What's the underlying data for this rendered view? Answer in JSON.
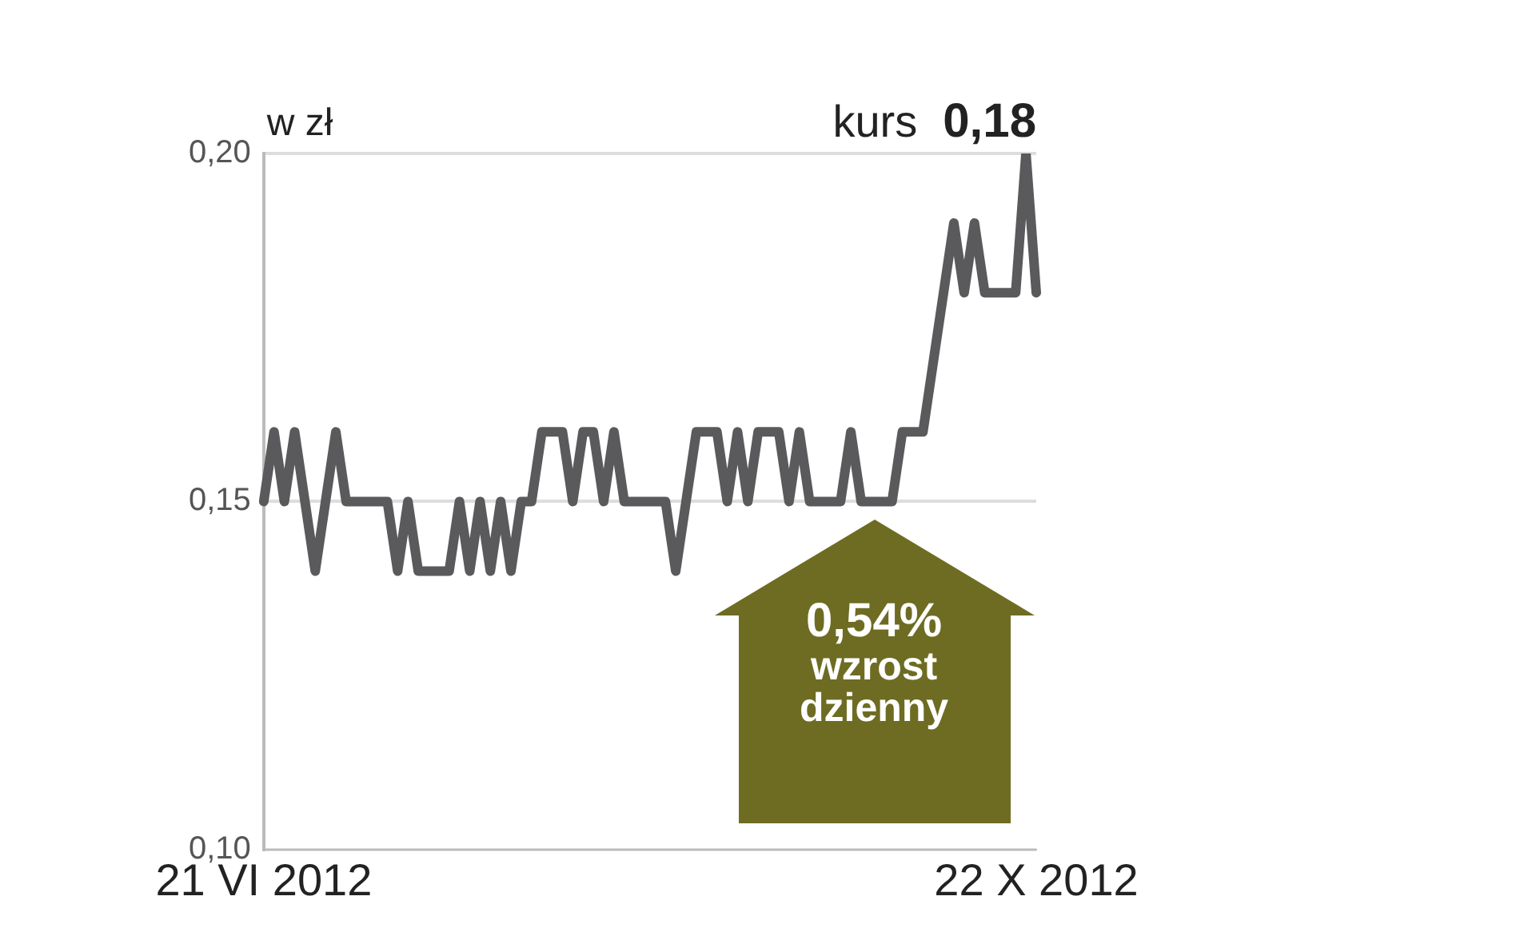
{
  "chart_data": {
    "type": "line",
    "ylabel": "w zł",
    "annotations": [
      "kurs",
      "0,18",
      "0,54%",
      "wzrost dzienny"
    ],
    "categories": [
      "21 VI 2012",
      null,
      null,
      null,
      null,
      null,
      null,
      null,
      null,
      null,
      null,
      null,
      null,
      null,
      null,
      null,
      null,
      null,
      null,
      null,
      null,
      null,
      null,
      null,
      null,
      null,
      null,
      null,
      null,
      null,
      null,
      null,
      null,
      null,
      null,
      null,
      null,
      null,
      null,
      null,
      null,
      null,
      null,
      null,
      null,
      null,
      null,
      null,
      null,
      null,
      null,
      null,
      null,
      null,
      null,
      null,
      null,
      null,
      null,
      null,
      null,
      null,
      null,
      null,
      null,
      null,
      null,
      null,
      null,
      null,
      null,
      null,
      null,
      null,
      null,
      "22 X 2012"
    ],
    "series": [
      {
        "color": "#5a5a5c",
        "values": [
          0.15,
          0.16,
          0.15,
          0.16,
          0.15,
          0.14,
          0.15,
          0.16,
          0.15,
          0.15,
          0.15,
          0.15,
          0.15,
          0.14,
          0.15,
          0.14,
          0.14,
          0.14,
          0.14,
          0.15,
          0.14,
          0.15,
          0.14,
          0.15,
          0.14,
          0.15,
          0.15,
          0.16,
          0.16,
          0.16,
          0.15,
          0.16,
          0.16,
          0.15,
          0.16,
          0.15,
          0.15,
          0.15,
          0.15,
          0.15,
          0.14,
          0.15,
          0.16,
          0.16,
          0.16,
          0.15,
          0.16,
          0.15,
          0.16,
          0.16,
          0.16,
          0.15,
          0.16,
          0.15,
          0.15,
          0.15,
          0.15,
          0.16,
          0.15,
          0.15,
          0.15,
          0.15,
          0.16,
          0.16,
          0.16,
          0.17,
          0.18,
          0.19,
          0.18,
          0.19,
          0.18,
          0.18,
          0.18,
          0.18,
          0.2,
          0.18
        ]
      }
    ],
    "ylim": [
      0.1,
      0.2
    ],
    "yticks": [
      {
        "value": 0.1,
        "label": "0,10"
      },
      {
        "value": 0.15,
        "label": "0,15"
      },
      {
        "value": 0.2,
        "label": "0,20"
      }
    ],
    "grid": "y",
    "marker": "none",
    "line_style": "solid",
    "legend": false
  }
}
